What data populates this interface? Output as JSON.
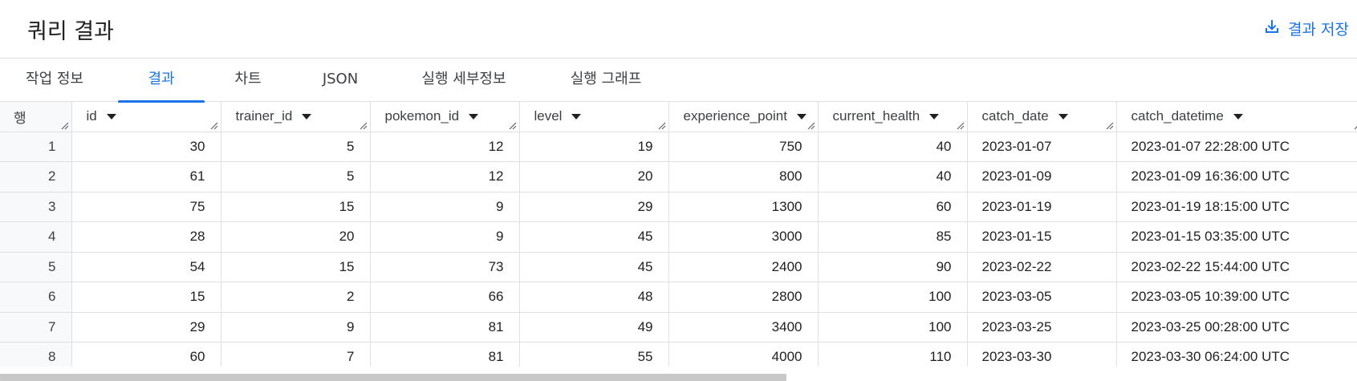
{
  "header": {
    "title": "쿼리 결과",
    "save_label": "결과 저장"
  },
  "tabs": [
    {
      "label": "작업 정보",
      "active": false
    },
    {
      "label": "결과",
      "active": true
    },
    {
      "label": "차트",
      "active": false
    },
    {
      "label": "JSON",
      "active": false
    },
    {
      "label": "실행 세부정보",
      "active": false
    },
    {
      "label": "실행 그래프",
      "active": false
    }
  ],
  "table": {
    "row_header": "행",
    "columns": [
      "id",
      "trainer_id",
      "pokemon_id",
      "level",
      "experience_point",
      "current_health",
      "catch_date",
      "catch_datetime"
    ],
    "rows": [
      [
        "1",
        "30",
        "5",
        "12",
        "19",
        "750",
        "40",
        "2023-01-07",
        "2023-01-07 22:28:00 UTC"
      ],
      [
        "2",
        "61",
        "5",
        "12",
        "20",
        "800",
        "40",
        "2023-01-09",
        "2023-01-09 16:36:00 UTC"
      ],
      [
        "3",
        "75",
        "15",
        "9",
        "29",
        "1300",
        "60",
        "2023-01-19",
        "2023-01-19 18:15:00 UTC"
      ],
      [
        "4",
        "28",
        "20",
        "9",
        "45",
        "3000",
        "85",
        "2023-01-15",
        "2023-01-15 03:35:00 UTC"
      ],
      [
        "5",
        "54",
        "15",
        "73",
        "45",
        "2400",
        "90",
        "2023-02-22",
        "2023-02-22 15:44:00 UTC"
      ],
      [
        "6",
        "15",
        "2",
        "66",
        "48",
        "2800",
        "100",
        "2023-03-05",
        "2023-03-05 10:39:00 UTC"
      ],
      [
        "7",
        "29",
        "9",
        "81",
        "49",
        "3400",
        "100",
        "2023-03-25",
        "2023-03-25 00:28:00 UTC"
      ],
      [
        "8",
        "60",
        "7",
        "81",
        "55",
        "4000",
        "110",
        "2023-03-30",
        "2023-03-30 06:24:00 UTC"
      ]
    ]
  },
  "icons": {
    "save": "download-icon",
    "sort": "sort-caret-icon",
    "resize": "column-resize-icon"
  },
  "colors": {
    "accent": "#1a73e8",
    "border": "#e0e0e0"
  }
}
